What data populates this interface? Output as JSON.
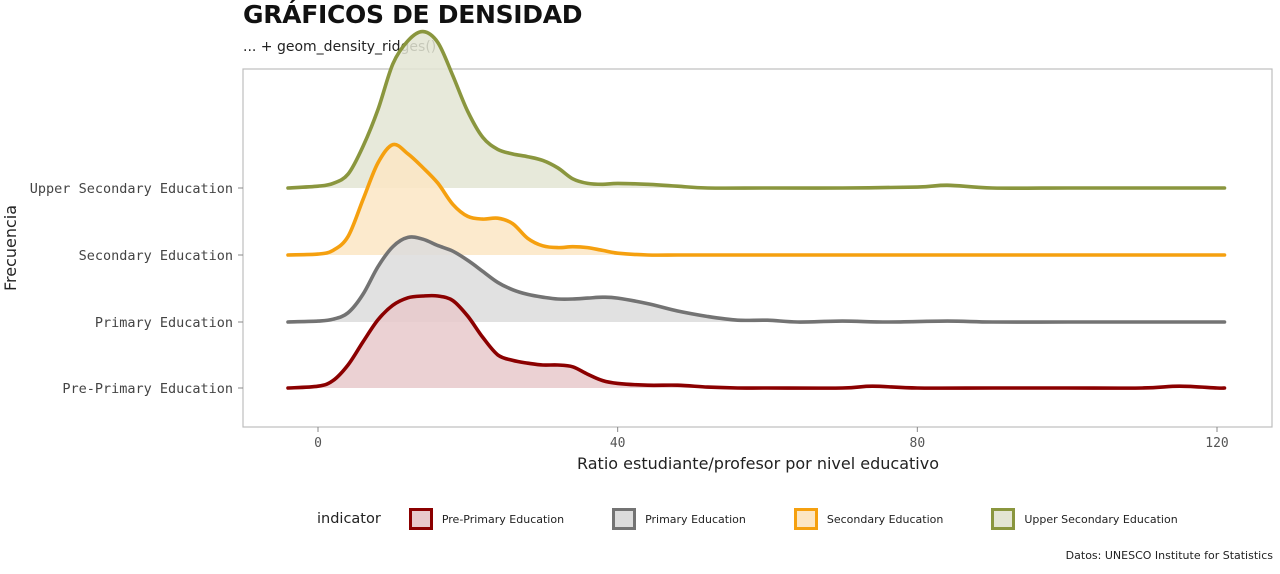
{
  "title": "GRÁFICOS DE DENSIDAD",
  "subtitle": "... + geom_density_ridges()",
  "caption": "Datos: UNESCO Institute for Statistics",
  "colors": {
    "Pre-Primary Education": "#8b0000",
    "Primary Education": "#737373",
    "Secondary Education": "#f5a00f",
    "Upper Secondary Education": "#8a963e",
    "panel_border": "#bdbdbd"
  },
  "legend": {
    "title": "indicator",
    "position": "bottom",
    "items": [
      {
        "label": "Pre-Primary Education",
        "color": "#8b0000",
        "fill": "#e8c9cb"
      },
      {
        "label": "Primary Education",
        "color": "#737373",
        "fill": "#dcdcdc"
      },
      {
        "label": "Secondary Education",
        "color": "#f5a00f",
        "fill": "#fce6c4"
      },
      {
        "label": "Upper Secondary Education",
        "color": "#8a963e",
        "fill": "#e3e5d3"
      }
    ]
  },
  "chart_data": {
    "type": "area",
    "subtype": "density ridgeline",
    "xlabel": "Ratio estudiante/profesor por nivel educativo",
    "ylabel": "Frecuencia",
    "xlim": [
      -10,
      127
    ],
    "x_ticks": [
      0,
      40,
      80,
      120
    ],
    "y_categories": [
      "Pre-Primary Education",
      "Primary Education",
      "Secondary Education",
      "Upper Secondary Education"
    ],
    "grid": false,
    "series": [
      {
        "name": "Pre-Primary Education",
        "x": [
          -4,
          0,
          2,
          4,
          6,
          8,
          10,
          12,
          14,
          16,
          18,
          20,
          22,
          24,
          26,
          28,
          30,
          32,
          34,
          36,
          38,
          40,
          44,
          48,
          52,
          56,
          60,
          70,
          74,
          80,
          90,
          100,
          110,
          115,
          120,
          121
        ],
        "y": [
          0,
          0.02,
          0.08,
          0.25,
          0.5,
          0.74,
          0.9,
          0.98,
          1.0,
          1.0,
          0.95,
          0.78,
          0.55,
          0.36,
          0.3,
          0.27,
          0.25,
          0.25,
          0.23,
          0.15,
          0.08,
          0.05,
          0.03,
          0.03,
          0.01,
          0.0,
          0.0,
          0.0,
          0.02,
          0.0,
          0.0,
          0.0,
          0.0,
          0.02,
          0.0,
          0.0
        ]
      },
      {
        "name": "Primary Education",
        "x": [
          -4,
          0,
          2,
          4,
          6,
          8,
          10,
          12,
          14,
          16,
          18,
          20,
          22,
          24,
          26,
          28,
          30,
          32,
          34,
          36,
          38,
          40,
          44,
          48,
          52,
          56,
          60,
          64,
          70,
          76,
          84,
          90,
          100,
          110,
          121
        ],
        "y": [
          0,
          0.01,
          0.03,
          0.1,
          0.3,
          0.6,
          0.82,
          0.92,
          0.9,
          0.83,
          0.77,
          0.67,
          0.55,
          0.43,
          0.35,
          0.3,
          0.27,
          0.25,
          0.25,
          0.26,
          0.27,
          0.26,
          0.2,
          0.12,
          0.06,
          0.02,
          0.02,
          0.0,
          0.01,
          0.0,
          0.01,
          0.0,
          0.0,
          0.0,
          0.0
        ]
      },
      {
        "name": "Secondary Education",
        "x": [
          -4,
          0,
          2,
          4,
          6,
          8,
          10,
          12,
          14,
          16,
          18,
          20,
          22,
          24,
          26,
          28,
          30,
          32,
          34,
          36,
          38,
          40,
          44,
          48,
          52,
          60,
          80,
          100,
          121
        ],
        "y": [
          0,
          0.01,
          0.05,
          0.2,
          0.6,
          1.0,
          1.2,
          1.1,
          0.95,
          0.78,
          0.55,
          0.42,
          0.39,
          0.4,
          0.34,
          0.18,
          0.1,
          0.08,
          0.09,
          0.08,
          0.05,
          0.02,
          0.0,
          0.0,
          0.0,
          0.0,
          0.0,
          0.0,
          0.0
        ]
      },
      {
        "name": "Upper Secondary Education",
        "x": [
          -4,
          0,
          2,
          4,
          6,
          8,
          10,
          12,
          14,
          16,
          18,
          20,
          22,
          24,
          26,
          28,
          30,
          32,
          34,
          36,
          38,
          40,
          44,
          48,
          52,
          60,
          70,
          80,
          84,
          90,
          100,
          110,
          121
        ],
        "y": [
          0,
          0.02,
          0.05,
          0.15,
          0.45,
          0.85,
          1.35,
          1.6,
          1.7,
          1.58,
          1.22,
          0.83,
          0.55,
          0.42,
          0.37,
          0.34,
          0.3,
          0.22,
          0.1,
          0.05,
          0.04,
          0.05,
          0.04,
          0.02,
          0.0,
          0.0,
          0.0,
          0.01,
          0.03,
          0.0,
          0.0,
          0.0,
          0.0
        ]
      }
    ]
  }
}
